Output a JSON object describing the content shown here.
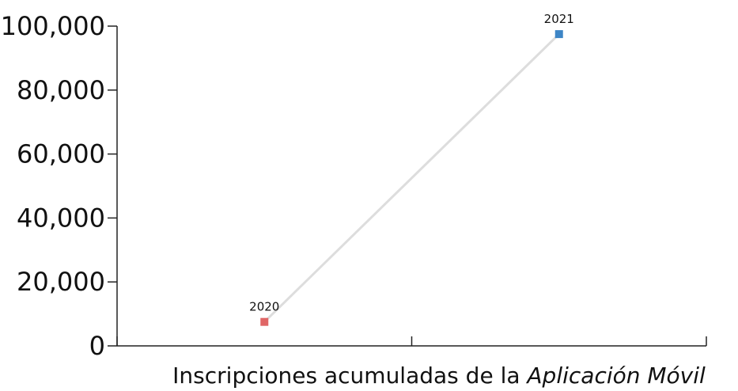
{
  "chart_data": {
    "type": "line",
    "xlabel_parts": [
      "Inscripciones acumuladas de la ",
      "Aplicación Móvil"
    ],
    "ylim": [
      0,
      100000
    ],
    "yticks": [
      0,
      20000,
      40000,
      60000,
      80000,
      100000
    ],
    "ytick_labels": [
      "0",
      "20,000",
      "40,000",
      "60,000",
      "80,000",
      "100,000"
    ],
    "points": [
      {
        "label": "2020",
        "value": 7500,
        "color": "#e06666"
      },
      {
        "label": "2021",
        "value": 97500,
        "color": "#3d85c6"
      }
    ],
    "line_color": "#dddddd",
    "grid": false
  }
}
